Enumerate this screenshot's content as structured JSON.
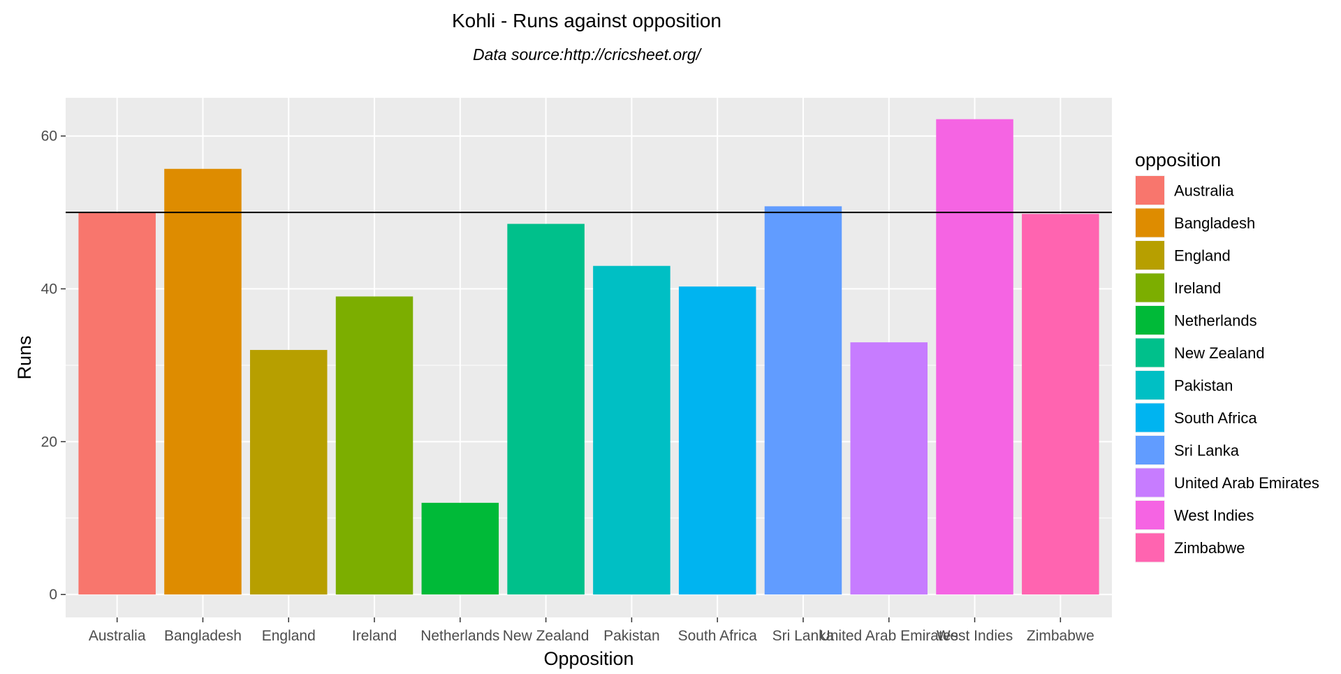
{
  "chart_data": {
    "type": "bar",
    "title": "Kohli - Runs against opposition",
    "subtitle": "Data source:http://cricsheet.org/",
    "xlabel": "Opposition",
    "ylabel": "Runs",
    "categories": [
      "Australia",
      "Bangladesh",
      "England",
      "Ireland",
      "Netherlands",
      "New Zealand",
      "Pakistan",
      "South Africa",
      "Sri Lanka",
      "United Arab Emirates",
      "West Indies",
      "Zimbabwe"
    ],
    "values": [
      50,
      55.7,
      32,
      39,
      12,
      48.5,
      43,
      40.3,
      50.8,
      33,
      62.2,
      49.8
    ],
    "colors": [
      "#F8766D",
      "#DE8C00",
      "#B79F00",
      "#7CAE00",
      "#00BA38",
      "#00C08B",
      "#00BFC4",
      "#00B4F0",
      "#619CFF",
      "#C77CFF",
      "#F564E3",
      "#FF64B0"
    ],
    "yticks": [
      0,
      20,
      40,
      60
    ],
    "ylim": [
      -3,
      65
    ],
    "reference_line": 50,
    "legend": {
      "title": "opposition",
      "position": "right"
    },
    "grid": true
  }
}
